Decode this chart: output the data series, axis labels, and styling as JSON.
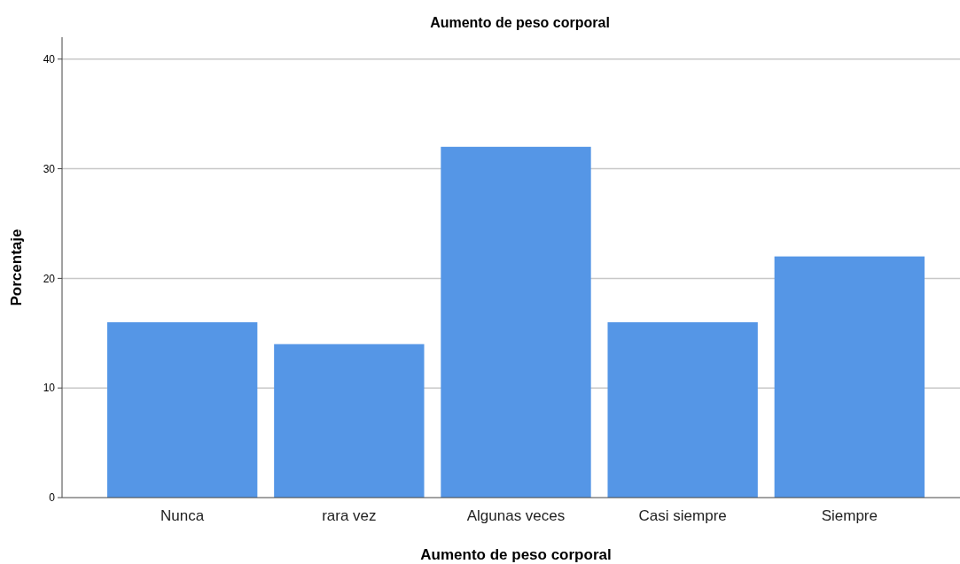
{
  "chart_data": {
    "type": "bar",
    "title": "Aumento de peso corporal",
    "xlabel": "Aumento de peso corporal",
    "ylabel": "Porcentaje",
    "categories": [
      "Nunca",
      "rara vez",
      "Algunas veces",
      "Casi siempre",
      "Siempre"
    ],
    "values": [
      16,
      14,
      32,
      16,
      22
    ],
    "color": "#5596e6",
    "ylim": [
      0,
      42
    ],
    "yticks": [
      0,
      10,
      20,
      30,
      40
    ],
    "grid": "y"
  }
}
